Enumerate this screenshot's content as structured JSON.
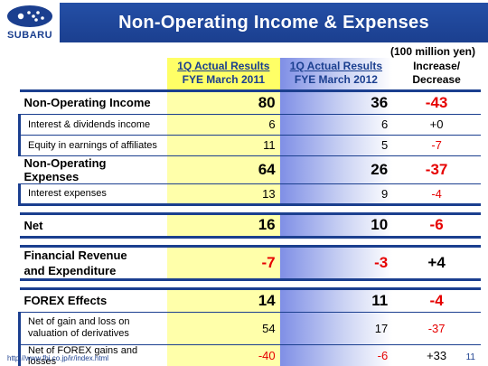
{
  "header": {
    "logo_text": "SUBARU",
    "title": "Non-Operating Income & Expenses"
  },
  "unit": "(100 million yen)",
  "columns": {
    "a_line1": "1Q Actual Results",
    "a_line2": "FYE March 2011",
    "b_line1": "1Q Actual Results",
    "b_line2": "FYE March 2012",
    "c_line1": "Increase/",
    "c_line2": "Decrease"
  },
  "rows": {
    "non_operating_income": {
      "label": "Non-Operating Income",
      "a": "80",
      "b": "36",
      "c": "-43"
    },
    "interest_dividends": {
      "label": "Interest & dividends income",
      "a": "6",
      "b": "6",
      "c": "+0"
    },
    "equity_earnings": {
      "label": "Equity in earnings of affiliates",
      "a": "11",
      "b": "5",
      "c": "-7"
    },
    "non_operating_expenses": {
      "label": "Non-Operating Expenses",
      "a": "64",
      "b": "26",
      "c": "-37"
    },
    "interest_expenses": {
      "label": "Interest expenses",
      "a": "13",
      "b": "9",
      "c": "-4"
    },
    "net": {
      "label": "Net",
      "a": "16",
      "b": "10",
      "c": "-6"
    },
    "financial": {
      "label_line1": "Financial Revenue",
      "label_line2": "and Expenditure",
      "a": "-7",
      "b": "-3",
      "c": "+4"
    },
    "forex": {
      "label": "FOREX Effects",
      "a": "14",
      "b": "11",
      "c": "-4"
    },
    "derivatives": {
      "label_line1": "Net of gain and loss on",
      "label_line2": "valuation of derivatives",
      "a": "54",
      "b": "17",
      "c": "-37"
    },
    "forex_net": {
      "label": "Net of FOREX gains and losses",
      "a": "-40",
      "b": "-6",
      "c": "+33"
    }
  },
  "footer": {
    "url": "http://www.fhi.co.jp/ir/index.html",
    "page": "11"
  },
  "colors": {
    "brand_blue": "#1b3f8f",
    "negative_red": "#e60000",
    "highlight_yellow": "#ffffaa"
  }
}
